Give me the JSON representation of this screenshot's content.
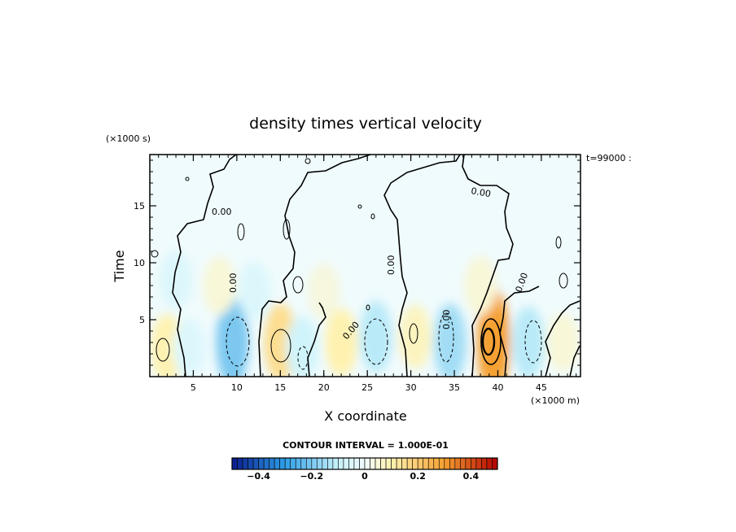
{
  "chart_data": {
    "type": "heatmap",
    "title": "density times vertical velocity",
    "xlabel": "X coordinate",
    "ylabel": "Time",
    "x_unit": "(×1000 m)",
    "y_unit": "(×1000 s)",
    "time_label": "t=99000 :",
    "contour_interval_text": "CONTOUR INTERVAL = 1.000E-01",
    "contour_label": "0.00",
    "xlim": [
      0,
      49.5
    ],
    "ylim": [
      0,
      19.5
    ],
    "x_ticks": [
      5,
      10,
      15,
      20,
      25,
      30,
      35,
      40,
      45
    ],
    "x_tick_labels": [
      "5",
      "10",
      "15",
      "20",
      "25",
      "30",
      "35",
      "40",
      "45"
    ],
    "y_ticks": [
      5,
      10,
      15
    ],
    "y_tick_labels": [
      "5",
      "10",
      "15"
    ],
    "colorbar": {
      "range": [
        -0.5,
        0.5
      ],
      "ticks": [
        -0.4,
        -0.2,
        0,
        0.2,
        0.4
      ],
      "tick_labels": [
        "−0.4",
        "−0.2",
        "0",
        "0.2",
        "0.4"
      ],
      "colors": {
        "strong_negative": "#0a1a8c",
        "negative": "#2e9ee6",
        "weak_negative": "#c8f2fa",
        "zero": "#f0fbfd",
        "weak_positive": "#fff2b0",
        "positive": "#f5a030",
        "strong_positive": "#b40000"
      }
    },
    "features": [
      {
        "x": 2,
        "y": 2.5,
        "value": 0.1
      },
      {
        "x": 4.5,
        "y": 2.5,
        "value": -0.05
      },
      {
        "x": 9.5,
        "y": 3,
        "value": -0.2
      },
      {
        "x": 15,
        "y": 3,
        "value": 0.15
      },
      {
        "x": 17.5,
        "y": 2.5,
        "value": -0.08
      },
      {
        "x": 22,
        "y": 3,
        "value": 0.1
      },
      {
        "x": 26,
        "y": 3.5,
        "value": -0.12
      },
      {
        "x": 30.5,
        "y": 3.5,
        "value": 0.08
      },
      {
        "x": 34.5,
        "y": 3,
        "value": -0.15
      },
      {
        "x": 39.5,
        "y": 3,
        "value": 0.3
      },
      {
        "x": 43.5,
        "y": 3,
        "value": -0.12
      },
      {
        "x": 47.5,
        "y": 3,
        "value": 0.05
      },
      {
        "x": 3,
        "y": 8.5,
        "value": -0.05
      },
      {
        "x": 8,
        "y": 8,
        "value": 0.05
      },
      {
        "x": 12,
        "y": 7.5,
        "value": -0.05
      },
      {
        "x": 20,
        "y": 7.5,
        "value": 0.04
      },
      {
        "x": 38,
        "y": 8,
        "value": 0.05
      }
    ]
  }
}
